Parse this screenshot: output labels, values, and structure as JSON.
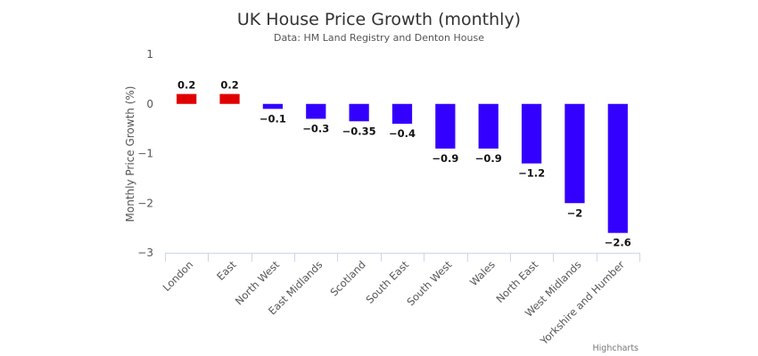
{
  "chart_data": {
    "type": "bar",
    "title": "UK House Price Growth (monthly)",
    "subtitle": "Data: HM Land Registry and Denton House",
    "ylabel": "Monthly Price Growth (%)",
    "xlabel": "",
    "ylim": [
      -3,
      1
    ],
    "yticks": [
      1,
      0,
      -1,
      -2,
      -3
    ],
    "grid": false,
    "categories": [
      "London",
      "East",
      "North West",
      "East Midlands",
      "Scotland",
      "South East",
      "South West",
      "Wales",
      "North East",
      "West Midlands",
      "Yorkshire and Humber"
    ],
    "values": [
      0.2,
      0.2,
      -0.1,
      -0.3,
      -0.35,
      -0.4,
      -0.9,
      -0.9,
      -1.2,
      -2,
      -2.6
    ],
    "data_labels": [
      "0.2",
      "0.2",
      "−0.1",
      "−0.3",
      "−0.35",
      "−0.4",
      "−0.9",
      "−0.9",
      "−1.2",
      "−2",
      "−2.6"
    ],
    "colors": {
      "positive": "#e00000",
      "negative": "#3300ff"
    },
    "credit": "Highcharts"
  }
}
